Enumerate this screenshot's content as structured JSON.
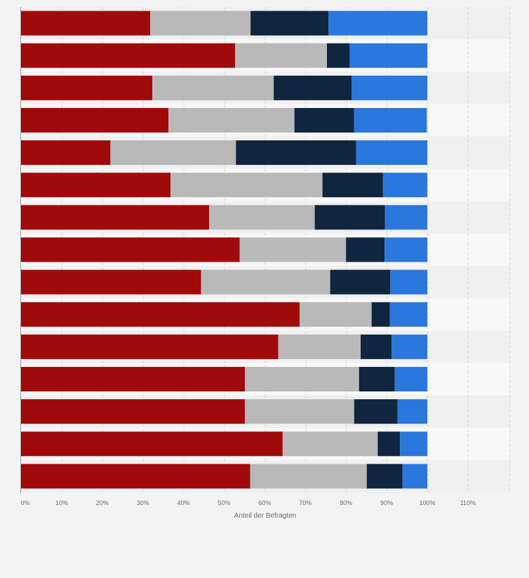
{
  "chart_data": {
    "type": "bar",
    "orientation": "horizontal",
    "stacked": true,
    "xlabel": "Anteil der Befragten",
    "xlim": [
      0,
      120
    ],
    "ticks": [
      "0%",
      "10%",
      "20%",
      "30%",
      "40%",
      "50%",
      "60%",
      "70%",
      "80%",
      "90%",
      "100%",
      "110%"
    ],
    "tick_values": [
      0,
      10,
      20,
      30,
      40,
      50,
      60,
      70,
      80,
      90,
      100,
      110
    ],
    "grid": true,
    "categories": [
      "",
      "",
      "",
      "",
      "",
      "",
      "",
      "",
      "",
      "",
      "",
      "",
      "",
      "",
      ""
    ],
    "series": [
      {
        "color": "#a10a0a",
        "values": [
          31.8,
          52.7,
          32.3,
          36.3,
          22.0,
          36.8,
          46.3,
          53.8,
          44.3,
          68.6,
          63.3,
          55.1,
          55.1,
          64.4,
          56.4
        ]
      },
      {
        "color": "#b9b9b9",
        "values": [
          24.7,
          22.6,
          29.9,
          31.0,
          30.9,
          37.4,
          26.0,
          26.2,
          31.8,
          17.7,
          20.3,
          28.1,
          26.9,
          23.4,
          28.7
        ]
      },
      {
        "color": "#0f2540",
        "values": [
          19.2,
          5.6,
          19.2,
          14.7,
          29.6,
          14.9,
          17.3,
          9.5,
          14.8,
          4.5,
          7.6,
          8.8,
          10.7,
          5.5,
          8.8
        ]
      },
      {
        "color": "#2a77dd",
        "values": [
          24.3,
          19.1,
          18.6,
          17.9,
          17.5,
          10.9,
          10.4,
          10.5,
          9.1,
          9.2,
          8.8,
          8.0,
          7.3,
          6.7,
          6.1
        ]
      }
    ]
  }
}
